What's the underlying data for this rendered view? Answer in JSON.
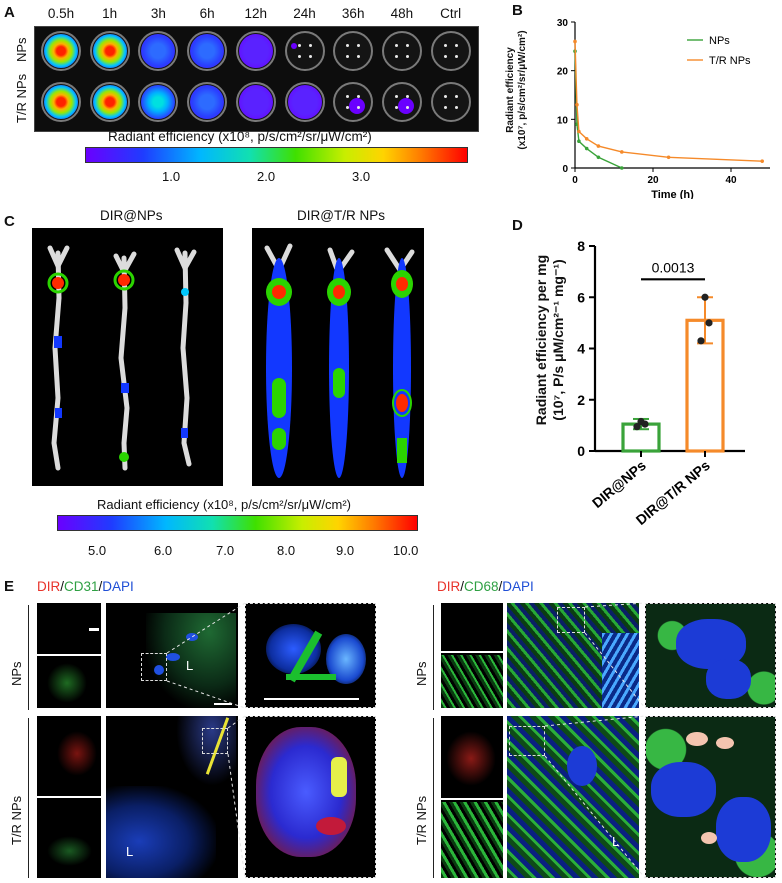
{
  "panels": {
    "A": {
      "letter": "A",
      "timepoints": [
        "0.5h",
        "1h",
        "3h",
        "6h",
        "12h",
        "24h",
        "36h",
        "48h",
        "Ctrl"
      ],
      "row_labels": [
        "NPs",
        "T/R NPs"
      ],
      "colorbar_title": "Radiant efficiency (x10⁸, p/s/cm²/sr/μW/cm²)",
      "colorbar_ticks": [
        "1.0",
        "2.0",
        "3.0"
      ]
    },
    "B": {
      "letter": "B",
      "ylabel_line1": "Radiant efficiency",
      "ylabel_line2": "(x10⁷, p/s/cm²/sr/μW/cm²)",
      "xlabel": "Time (h)"
    },
    "C": {
      "letter": "C",
      "left_title": "DIR@NPs",
      "right_title": "DIR@T/R NPs",
      "colorbar_title": "Radiant efficiency (x10⁸, p/s/cm²/sr/μW/cm²)",
      "colorbar_ticks": [
        "5.0",
        "6.0",
        "7.0",
        "8.0",
        "9.0",
        "10.0"
      ]
    },
    "D": {
      "letter": "D",
      "ylabel_line1": "Radiant efficiency per mg",
      "ylabel_line2": "(10⁷, P/s μM/cm²⁻¹ mg⁻¹)",
      "pvalue": "0.0013"
    },
    "E": {
      "letter": "E",
      "left_stain": {
        "dir": "DIR",
        "sep1": "/",
        "marker": "CD31",
        "sep2": "/",
        "nuc": "DAPI"
      },
      "right_stain": {
        "dir": "DIR",
        "sep1": "/",
        "marker": "CD68",
        "sep2": "/",
        "nuc": "DAPI"
      },
      "row_labels": [
        "NPs",
        "T/R NPs"
      ],
      "lumen": "L"
    }
  },
  "colors": {
    "nps": "#3aa33a",
    "trnps": "#f58a2a",
    "dir_red": "#e8332a",
    "marker_green": "#2ea043",
    "dapi_blue": "#1f4fd6"
  },
  "chart_data": [
    {
      "type": "line",
      "panel": "B",
      "xlabel": "Time (h)",
      "ylabel": "Radiant efficiency (x10⁷, p/s/cm²/sr/μW/cm²)",
      "xlim": [
        0,
        50
      ],
      "ylim": [
        0,
        30
      ],
      "xticks": [
        0,
        20,
        40
      ],
      "yticks": [
        0,
        10,
        20,
        30
      ],
      "legend": "top-right",
      "series": [
        {
          "name": "NPs",
          "color": "#3aa33a",
          "x": [
            0,
            0.5,
            1,
            3,
            6,
            12
          ],
          "y": [
            24,
            9,
            5.5,
            4,
            2.2,
            0
          ]
        },
        {
          "name": "T/R NPs",
          "color": "#f58a2a",
          "x": [
            0,
            0.5,
            1,
            3,
            6,
            12,
            24,
            48
          ],
          "y": [
            26,
            13,
            7.5,
            6,
            4.5,
            3.3,
            2.2,
            1.4
          ]
        }
      ]
    },
    {
      "type": "bar",
      "panel": "D",
      "categories": [
        "DIR@NPs",
        "DIR@T/R NPs"
      ],
      "values": [
        1.05,
        5.1
      ],
      "errors": [
        0.2,
        0.9
      ],
      "points": [
        [
          0.95,
          1.15,
          1.05
        ],
        [
          4.3,
          6.0,
          5.0
        ]
      ],
      "colors": [
        "#3aa33a",
        "#f58a2a"
      ],
      "ylim": [
        0,
        8
      ],
      "yticks": [
        0,
        2,
        4,
        6,
        8
      ],
      "pvalue": "0.0013"
    }
  ]
}
